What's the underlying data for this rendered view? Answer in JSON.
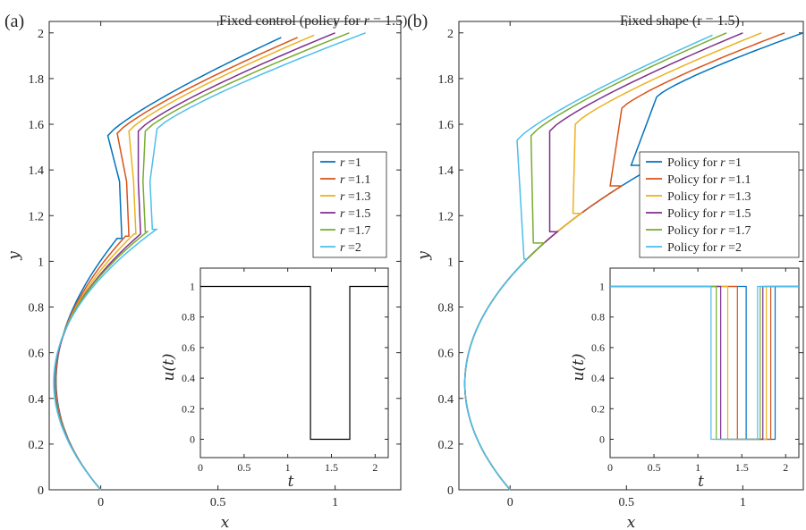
{
  "chart_data": [
    {
      "panel": "(a)",
      "type": "line",
      "title": "Fixed control (policy for r = 1.5)",
      "xlabel": "x",
      "ylabel": "y",
      "xlim": [
        -0.22,
        1.28
      ],
      "ylim": [
        0,
        2.05
      ],
      "xticks": [
        "0",
        "0.5",
        "1"
      ],
      "yticks": [
        "0",
        "0.2",
        "0.4",
        "0.6",
        "0.8",
        "1",
        "1.2",
        "1.4",
        "1.6",
        "1.8",
        "2"
      ],
      "legend_position": "right-middle",
      "series": [
        {
          "name": "r =1",
          "color": "#0072BD",
          "kink_low": [
            0.09,
            1.1
          ],
          "kink_high": [
            0.03,
            1.55
          ],
          "end": [
            0.77,
            1.98
          ]
        },
        {
          "name": "r =1.1",
          "color": "#D95319",
          "kink_low": [
            0.12,
            1.11
          ],
          "kink_high": [
            0.07,
            1.56
          ],
          "end": [
            0.84,
            1.98
          ]
        },
        {
          "name": "r =1.3",
          "color": "#EDB120",
          "kink_low": [
            0.15,
            1.12
          ],
          "kink_high": [
            0.12,
            1.57
          ],
          "end": [
            0.91,
            1.99
          ]
        },
        {
          "name": "r =1.5",
          "color": "#7E2F8E",
          "kink_low": [
            0.17,
            1.12
          ],
          "kink_high": [
            0.16,
            1.57
          ],
          "end": [
            1.0,
            2.0
          ]
        },
        {
          "name": "r =1.7",
          "color": "#77AC30",
          "kink_low": [
            0.19,
            1.13
          ],
          "kink_high": [
            0.19,
            1.57
          ],
          "end": [
            1.06,
            2.0
          ]
        },
        {
          "name": "r =2",
          "color": "#4DBEEE",
          "kink_low": [
            0.22,
            1.14
          ],
          "kink_high": [
            0.24,
            1.58
          ],
          "end": [
            1.13,
            2.0
          ]
        }
      ],
      "inset": {
        "xlabel": "t",
        "ylabel": "u(t)",
        "xlim": [
          0,
          2.15
        ],
        "ylim": [
          -0.12,
          1.12
        ],
        "xticks": [
          "0",
          "0.5",
          "1",
          "1.5",
          "2"
        ],
        "yticks": [
          "0",
          "0.2",
          "0.4",
          "0.6",
          "0.8",
          "1"
        ],
        "steps": [
          {
            "color": "#000000",
            "off_start": 1.26,
            "off_end": 1.71
          }
        ]
      }
    },
    {
      "panel": "(b)",
      "type": "line",
      "title": "Fixed shape (r = 1.5)",
      "xlabel": "x",
      "ylabel": "y",
      "xlim": [
        -0.22,
        1.26
      ],
      "ylim": [
        0,
        2.05
      ],
      "xticks": [
        "0",
        "0.5",
        "1"
      ],
      "yticks": [
        "0",
        "0.2",
        "0.4",
        "0.6",
        "0.8",
        "1",
        "1.2",
        "1.4",
        "1.6",
        "1.8",
        "2"
      ],
      "legend_position": "right-middle",
      "series": [
        {
          "name": "Policy for r =1",
          "color": "#0072BD",
          "jump_start": [
            0.52,
            1.42
          ],
          "jump_end": [
            0.63,
            1.72
          ],
          "end": [
            1.26,
            2.0
          ]
        },
        {
          "name": "Policy for r =1.1",
          "color": "#D95319",
          "jump_start": [
            0.43,
            1.33
          ],
          "jump_end": [
            0.48,
            1.67
          ],
          "end": [
            1.18,
            2.0
          ]
        },
        {
          "name": "Policy for r =1.3",
          "color": "#EDB120",
          "jump_start": [
            0.27,
            1.21
          ],
          "jump_end": [
            0.28,
            1.6
          ],
          "end": [
            1.08,
            2.0
          ]
        },
        {
          "name": "Policy for r =1.5",
          "color": "#7E2F8E",
          "jump_start": [
            0.17,
            1.13
          ],
          "jump_end": [
            0.17,
            1.57
          ],
          "end": [
            1.0,
            2.0
          ]
        },
        {
          "name": "Policy for r =1.7",
          "color": "#77AC30",
          "jump_start": [
            0.1,
            1.08
          ],
          "jump_end": [
            0.09,
            1.55
          ],
          "end": [
            0.93,
            2.0
          ]
        },
        {
          "name": "Policy for r =2",
          "color": "#4DBEEE",
          "jump_start": [
            0.06,
            1.01
          ],
          "jump_end": [
            0.03,
            1.53
          ],
          "end": [
            0.87,
            1.99
          ]
        }
      ],
      "inset": {
        "xlabel": "t",
        "ylabel": "u(t)",
        "xlim": [
          0,
          2.15
        ],
        "ylim": [
          -0.12,
          1.12
        ],
        "xticks": [
          "0",
          "0.5",
          "1",
          "1.5",
          "2"
        ],
        "yticks": [
          "0",
          "0.2",
          "0.4",
          "0.6",
          "0.8",
          "1"
        ],
        "steps": [
          {
            "color": "#0072BD",
            "off_start": 1.55,
            "off_end": 1.88
          },
          {
            "color": "#D95319",
            "off_start": 1.45,
            "off_end": 1.83
          },
          {
            "color": "#EDB120",
            "off_start": 1.34,
            "off_end": 1.78
          },
          {
            "color": "#7E2F8E",
            "off_start": 1.26,
            "off_end": 1.74
          },
          {
            "color": "#77AC30",
            "off_start": 1.21,
            "off_end": 1.71
          },
          {
            "color": "#4DBEEE",
            "off_start": 1.15,
            "off_end": 1.68
          }
        ]
      }
    }
  ]
}
